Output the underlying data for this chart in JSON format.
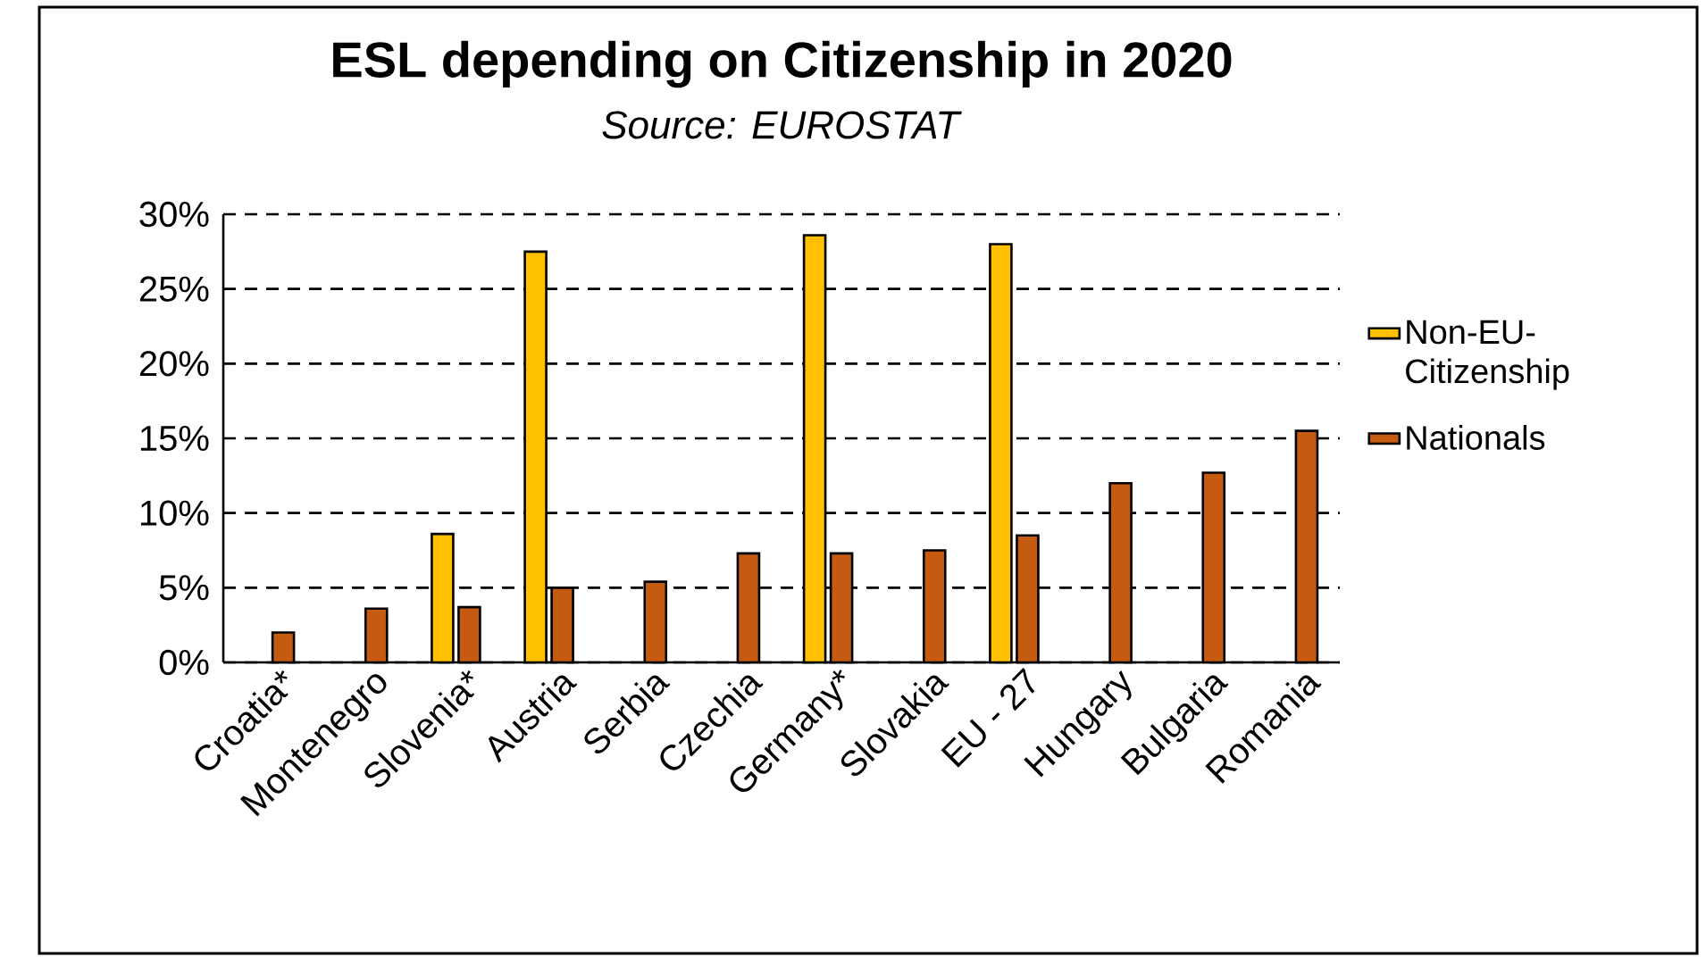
{
  "chart_data": {
    "type": "bar",
    "title": "ESL depending on Citizenship in 2020",
    "subtitle": "*Source: EUROSTAT*",
    "categories": [
      "Croatia*",
      "Montenegro",
      "Slovenia*",
      "Austria",
      "Serbia",
      "Czechia",
      "Germany*",
      "Slovakia",
      "EU - 27",
      "Hungary",
      "Bulgaria",
      "Romania"
    ],
    "series": [
      {
        "name": "Non-EU-Citizenship",
        "color": "#ffc000",
        "values": [
          null,
          null,
          8.6,
          27.5,
          null,
          null,
          28.6,
          null,
          28.0,
          null,
          null,
          null
        ]
      },
      {
        "name": "Nationals",
        "color": "#c55a11",
        "values": [
          2.0,
          3.6,
          3.7,
          5.0,
          5.4,
          7.3,
          7.3,
          7.5,
          8.5,
          12.0,
          12.7,
          15.5
        ]
      }
    ],
    "ylim": [
      0,
      30
    ],
    "yticks": [
      {
        "value": 0,
        "label": "0%"
      },
      {
        "value": 5,
        "label": "5%"
      },
      {
        "value": 10,
        "label": "10%"
      },
      {
        "value": 15,
        "label": "15%"
      },
      {
        "value": 20,
        "label": "20%"
      },
      {
        "value": 25,
        "label": "25%"
      },
      {
        "value": 30,
        "label": "30%"
      }
    ],
    "grid": "y",
    "legend": "right"
  }
}
